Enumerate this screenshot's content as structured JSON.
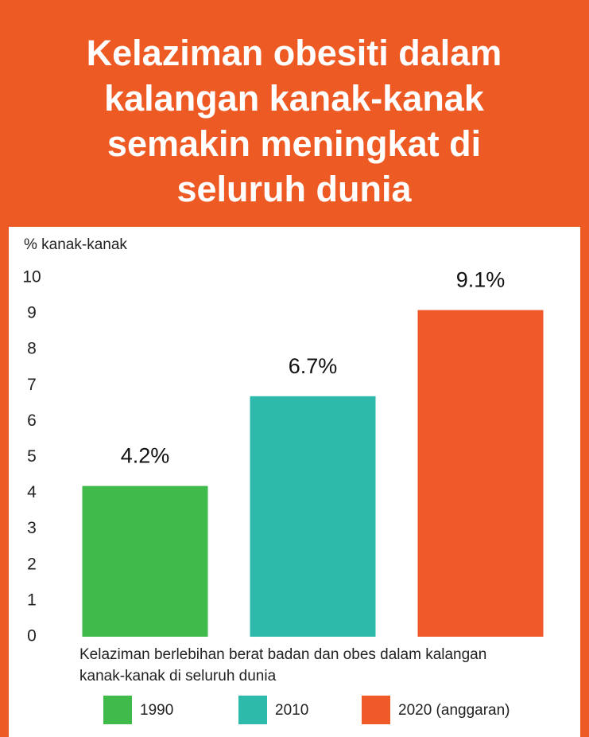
{
  "chart_data": {
    "type": "bar",
    "title": [
      "Kelaziman obesiti dalam",
      "kalangan kanak-kanak",
      "semakin meningkat di",
      "seluruh dunia"
    ],
    "ylabel": "% kanak-kanak",
    "categories": [
      "1990",
      "2010",
      "2020 (anggaran)"
    ],
    "values": [
      4.2,
      6.7,
      9.1
    ],
    "value_labels": [
      "4.2%",
      "6.7%",
      "9.1%"
    ],
    "colors": [
      "#3fba4b",
      "#2dbaaa",
      "#f05a28"
    ],
    "ylim": [
      0,
      10
    ],
    "yticks": [
      0,
      1,
      2,
      3,
      4,
      5,
      6,
      7,
      8,
      9,
      10
    ],
    "note": [
      "Kelaziman berlebihan berat badan dan obes dalam kalangan",
      "kanak-kanak  di seluruh dunia"
    ],
    "grid": false
  }
}
